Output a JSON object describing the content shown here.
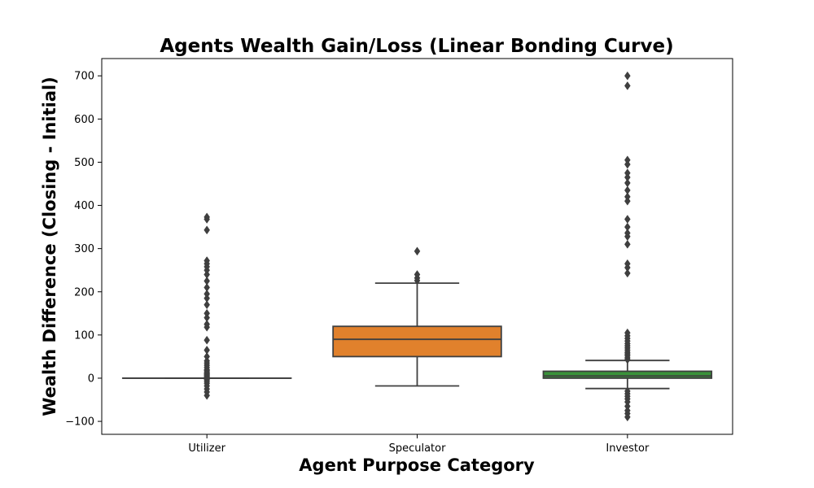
{
  "chart_data": {
    "type": "box",
    "title": "Agents Wealth Gain/Loss (Linear Bonding Curve)",
    "xlabel": "Agent Purpose Category",
    "ylabel": "Wealth Difference (Closing - Initial)",
    "ylim": [
      -130,
      740
    ],
    "yticks": [
      -100,
      0,
      100,
      200,
      300,
      400,
      500,
      600,
      700
    ],
    "grid": false,
    "categories": [
      "Utilizer",
      "Speculator",
      "Investor"
    ],
    "colors": {
      "Utilizer": "#3274a1",
      "Speculator": "#e1812c",
      "Investor": "#3a923a",
      "edge": "#3f3f3f"
    },
    "boxes": [
      {
        "category": "Utilizer",
        "whisker_low": 0,
        "q1": 0,
        "median": 0,
        "q3": 0,
        "whisker_high": 0,
        "outliers": [
          -40,
          -32,
          -25,
          -18,
          -12,
          -8,
          -4,
          -2,
          2,
          4,
          6,
          8,
          10,
          12,
          15,
          18,
          20,
          25,
          30,
          35,
          40,
          50,
          65,
          88,
          118,
          125,
          140,
          150,
          170,
          185,
          195,
          210,
          225,
          240,
          250,
          258,
          265,
          272,
          343,
          368,
          373
        ]
      },
      {
        "category": "Speculator",
        "whisker_low": -18,
        "q1": 50,
        "median": 90,
        "q3": 120,
        "whisker_high": 220,
        "outliers": [
          226,
          232,
          240,
          294
        ]
      },
      {
        "category": "Investor",
        "whisker_low": -24,
        "q1": 0,
        "median": 5,
        "q3": 16,
        "whisker_high": 41,
        "outliers": [
          -90,
          -82,
          -75,
          -65,
          -55,
          -48,
          -42,
          -36,
          -30,
          43,
          47,
          52,
          56,
          60,
          65,
          70,
          75,
          80,
          86,
          92,
          98,
          105,
          243,
          256,
          265,
          310,
          328,
          336,
          350,
          368,
          410,
          420,
          435,
          452,
          465,
          475,
          495,
          505,
          677,
          700
        ]
      }
    ]
  }
}
